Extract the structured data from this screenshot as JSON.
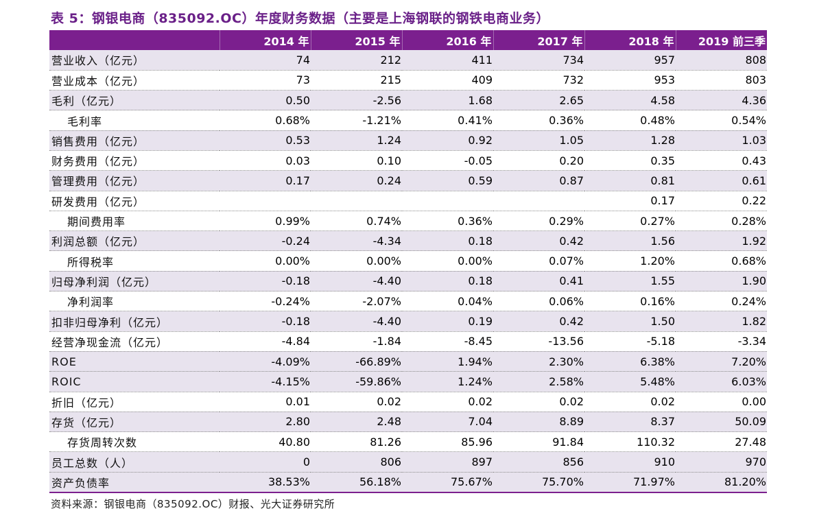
{
  "title": "表 5：钢银电商（835092.OC）年度财务数据（主要是上海钢联的钢铁电商业务）",
  "header": [
    "",
    "2014 年",
    "2015 年",
    "2016 年",
    "2017 年",
    "2018 年",
    "2019 前三季"
  ],
  "rows": [
    {
      "label": "营业收入（亿元）",
      "indent": false,
      "shaded": true,
      "values": [
        "74",
        "212",
        "411",
        "734",
        "957",
        "808"
      ]
    },
    {
      "label": "营业成本（亿元）",
      "indent": false,
      "shaded": false,
      "values": [
        "73",
        "215",
        "409",
        "732",
        "953",
        "803"
      ]
    },
    {
      "label": "毛利（亿元）",
      "indent": false,
      "shaded": true,
      "values": [
        "0.50",
        "-2.56",
        "1.68",
        "2.65",
        "4.58",
        "4.36"
      ]
    },
    {
      "label": "毛利率",
      "indent": true,
      "shaded": false,
      "values": [
        "0.68%",
        "-1.21%",
        "0.41%",
        "0.36%",
        "0.48%",
        "0.54%"
      ]
    },
    {
      "label": "销售费用（亿元）",
      "indent": false,
      "shaded": true,
      "values": [
        "0.53",
        "1.24",
        "0.92",
        "1.05",
        "1.28",
        "1.03"
      ]
    },
    {
      "label": "财务费用（亿元）",
      "indent": false,
      "shaded": false,
      "values": [
        "0.03",
        "0.10",
        "-0.05",
        "0.20",
        "0.35",
        "0.43"
      ]
    },
    {
      "label": "管理费用（亿元）",
      "indent": false,
      "shaded": true,
      "values": [
        "0.17",
        "0.24",
        "0.59",
        "0.87",
        "0.81",
        "0.61"
      ]
    },
    {
      "label": "研发费用（亿元）",
      "indent": false,
      "shaded": false,
      "values": [
        "",
        "",
        "",
        "",
        "0.17",
        "0.22"
      ]
    },
    {
      "label": "期间费用率",
      "indent": true,
      "shaded": false,
      "values": [
        "0.99%",
        "0.74%",
        "0.36%",
        "0.29%",
        "0.27%",
        "0.28%"
      ]
    },
    {
      "label": "利润总额（亿元）",
      "indent": false,
      "shaded": true,
      "values": [
        "-0.24",
        "-4.34",
        "0.18",
        "0.42",
        "1.56",
        "1.92"
      ]
    },
    {
      "label": "所得税率",
      "indent": true,
      "shaded": false,
      "values": [
        "0.00%",
        "0.00%",
        "0.00%",
        "0.07%",
        "1.20%",
        "0.68%"
      ]
    },
    {
      "label": "归母净利润（亿元）",
      "indent": false,
      "shaded": true,
      "values": [
        "-0.18",
        "-4.40",
        "0.18",
        "0.41",
        "1.55",
        "1.90"
      ]
    },
    {
      "label": "净利润率",
      "indent": true,
      "shaded": false,
      "values": [
        "-0.24%",
        "-2.07%",
        "0.04%",
        "0.06%",
        "0.16%",
        "0.24%"
      ]
    },
    {
      "label": "扣非归母净利（亿元）",
      "indent": false,
      "shaded": true,
      "values": [
        "-0.18",
        "-4.40",
        "0.19",
        "0.42",
        "1.50",
        "1.82"
      ]
    },
    {
      "label": "经营净现金流（亿元）",
      "indent": false,
      "shaded": false,
      "values": [
        "-4.84",
        "-1.84",
        "-8.45",
        "-13.56",
        "-5.18",
        "-3.34"
      ]
    },
    {
      "label": "ROE",
      "indent": false,
      "shaded": true,
      "values": [
        "-4.09%",
        "-66.89%",
        "1.94%",
        "2.30%",
        "6.38%",
        "7.20%"
      ]
    },
    {
      "label": "ROIC",
      "indent": false,
      "shaded": true,
      "values": [
        "-4.15%",
        "-59.86%",
        "1.24%",
        "2.58%",
        "5.48%",
        "6.03%"
      ]
    },
    {
      "label": "折旧（亿元）",
      "indent": false,
      "shaded": false,
      "values": [
        "0.01",
        "0.02",
        "0.02",
        "0.02",
        "0.02",
        "0.00"
      ]
    },
    {
      "label": "存货（亿元）",
      "indent": false,
      "shaded": true,
      "values": [
        "2.80",
        "2.48",
        "7.04",
        "8.89",
        "8.37",
        "50.09"
      ]
    },
    {
      "label": "存货周转次数",
      "indent": true,
      "shaded": false,
      "values": [
        "40.80",
        "81.26",
        "85.96",
        "91.84",
        "110.32",
        "27.48"
      ]
    },
    {
      "label": "员工总数（人）",
      "indent": false,
      "shaded": true,
      "values": [
        "0",
        "806",
        "897",
        "856",
        "910",
        "970"
      ]
    },
    {
      "label": "资产负债率",
      "indent": false,
      "shaded": true,
      "values": [
        "38.53%",
        "56.18%",
        "75.67%",
        "75.70%",
        "71.97%",
        "81.20%"
      ]
    }
  ],
  "source": "资料来源：钢银电商（835092.OC）财报、光大证券研究所",
  "colors": {
    "accent": "#7b1f8e",
    "title": "#6a2088",
    "shade": "#e8e3ee"
  }
}
